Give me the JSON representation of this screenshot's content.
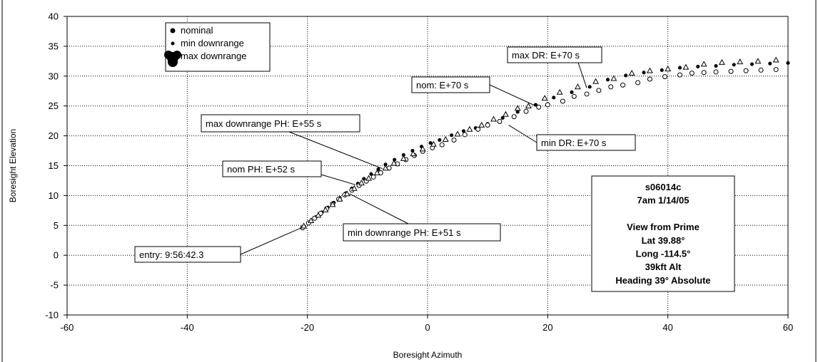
{
  "chart_data": {
    "type": "scatter",
    "xlabel": "Boresight Azimuth",
    "ylabel": "Boresight Elevation",
    "xlim": [
      -60,
      60
    ],
    "ylim": [
      -10,
      40
    ],
    "x_ticks": [
      -60,
      -40,
      -20,
      0,
      20,
      40,
      60
    ],
    "y_ticks": [
      -10,
      -5,
      0,
      5,
      10,
      15,
      20,
      25,
      30,
      35,
      40
    ],
    "grid": "dotted",
    "legend_position": "top-left",
    "series": [
      {
        "name": "nominal",
        "marker": "filled-circle",
        "points": [
          [
            -20.5,
            4.8
          ],
          [
            -19.6,
            5.6
          ],
          [
            -18.6,
            6.4
          ],
          [
            -17.6,
            7.2
          ],
          [
            -16.6,
            8.0
          ],
          [
            -15.6,
            8.8
          ],
          [
            -14.6,
            9.6
          ],
          [
            -13.6,
            10.4
          ],
          [
            -12.6,
            11.2
          ],
          [
            -11.6,
            12.0
          ],
          [
            -10.6,
            12.8
          ],
          [
            -9.4,
            13.6
          ],
          [
            -8.2,
            14.4
          ],
          [
            -7.0,
            15.2
          ],
          [
            -5.5,
            16.0
          ],
          [
            -4.0,
            16.8
          ],
          [
            -2.5,
            17.5
          ],
          [
            -1.0,
            18.2
          ],
          [
            0.5,
            18.8
          ],
          [
            2.0,
            19.3
          ],
          [
            4.0,
            20.1
          ],
          [
            6.0,
            20.8
          ],
          [
            8.0,
            21.3
          ],
          [
            10.0,
            22.0
          ],
          [
            12.5,
            23.0
          ],
          [
            15.0,
            24.0
          ],
          [
            18.0,
            25.2
          ],
          [
            21.0,
            26.4
          ],
          [
            24.0,
            27.3
          ],
          [
            27.0,
            28.2
          ],
          [
            30.0,
            29.4
          ],
          [
            33.0,
            30.1
          ],
          [
            36.0,
            30.6
          ],
          [
            39.0,
            31.0
          ],
          [
            42.0,
            31.4
          ],
          [
            45.0,
            31.6
          ],
          [
            48.0,
            31.7
          ],
          [
            51.0,
            31.9
          ],
          [
            54.0,
            32.0
          ],
          [
            57.0,
            32.1
          ],
          [
            60.0,
            32.2
          ]
        ]
      },
      {
        "name": "min downrange",
        "marker": "open-circle",
        "points": [
          [
            -20.8,
            4.6
          ],
          [
            -19.8,
            5.4
          ],
          [
            -18.8,
            6.2
          ],
          [
            -17.8,
            7.0
          ],
          [
            -16.8,
            7.8
          ],
          [
            -15.8,
            8.6
          ],
          [
            -14.8,
            9.4
          ],
          [
            -13.8,
            10.1
          ],
          [
            -12.6,
            10.9
          ],
          [
            -11.4,
            11.7
          ],
          [
            -10.2,
            12.4
          ],
          [
            -9.0,
            13.1
          ],
          [
            -7.8,
            13.8
          ],
          [
            -6.4,
            14.6
          ],
          [
            -5.0,
            15.3
          ],
          [
            -3.6,
            16.0
          ],
          [
            -2.2,
            16.7
          ],
          [
            -0.8,
            17.4
          ],
          [
            0.8,
            18.0
          ],
          [
            2.4,
            18.5
          ],
          [
            4.4,
            19.3
          ],
          [
            6.2,
            20.2
          ],
          [
            8.4,
            21.1
          ],
          [
            10.0,
            21.8
          ],
          [
            12.0,
            22.4
          ],
          [
            14.4,
            23.2
          ],
          [
            16.4,
            24.1
          ],
          [
            18.5,
            24.8
          ],
          [
            20.0,
            25.2
          ],
          [
            22.5,
            25.8
          ],
          [
            24.4,
            26.6
          ],
          [
            26.5,
            27.0
          ],
          [
            28.5,
            27.6
          ],
          [
            30.5,
            28.2
          ],
          [
            32.5,
            28.5
          ],
          [
            35.0,
            28.9
          ],
          [
            37.0,
            29.5
          ],
          [
            39.5,
            29.9
          ],
          [
            42.0,
            30.2
          ],
          [
            44.0,
            30.5
          ],
          [
            46.0,
            30.6
          ],
          [
            48.0,
            30.7
          ],
          [
            50.5,
            30.8
          ],
          [
            53.0,
            30.9
          ],
          [
            55.5,
            31.0
          ],
          [
            58.0,
            31.1
          ]
        ]
      },
      {
        "name": "max downrange",
        "marker": "open-triangle",
        "points": [
          [
            -20.6,
            4.9
          ],
          [
            -19.4,
            5.8
          ],
          [
            -18.2,
            6.7
          ],
          [
            -17.0,
            7.6
          ],
          [
            -15.8,
            8.5
          ],
          [
            -14.6,
            9.4
          ],
          [
            -13.4,
            10.3
          ],
          [
            -12.2,
            11.2
          ],
          [
            -11.0,
            12.1
          ],
          [
            -9.8,
            12.9
          ],
          [
            -8.4,
            13.8
          ],
          [
            -7.0,
            14.6
          ],
          [
            -5.6,
            15.4
          ],
          [
            -4.0,
            16.2
          ],
          [
            -2.4,
            17.0
          ],
          [
            -0.8,
            17.8
          ],
          [
            1.0,
            18.6
          ],
          [
            3.0,
            19.4
          ],
          [
            5.0,
            20.3
          ],
          [
            7.0,
            21.1
          ],
          [
            9.0,
            21.8
          ],
          [
            11.0,
            22.8
          ],
          [
            13.0,
            23.6
          ],
          [
            15.0,
            24.6
          ],
          [
            16.8,
            25.0
          ],
          [
            19.5,
            26.3
          ],
          [
            22.0,
            27.3
          ],
          [
            25.0,
            28.2
          ],
          [
            28.0,
            29.1
          ],
          [
            31.0,
            29.6
          ],
          [
            34.0,
            30.5
          ],
          [
            37.0,
            30.9
          ],
          [
            40.0,
            31.2
          ],
          [
            43.0,
            31.5
          ],
          [
            46.0,
            32.0
          ],
          [
            49.0,
            32.3
          ],
          [
            52.0,
            32.4
          ],
          [
            55.0,
            32.5
          ],
          [
            58.0,
            32.7
          ]
        ]
      }
    ],
    "legend": [
      "nominal",
      "min downrange",
      "max downrange"
    ],
    "annotations": [
      {
        "id": "entry",
        "text": "entry: 9:56:42.3",
        "target": [
          -21,
          4.6
        ]
      },
      {
        "id": "nom-ph",
        "text": "nom PH: E+52 s",
        "target": [
          -12,
          11.8
        ]
      },
      {
        "id": "max-ph",
        "text": "max downrange PH: E+55 s",
        "target": [
          -7.5,
          14.5
        ]
      },
      {
        "id": "min-ph",
        "text": "min downrange PH: E+51 s",
        "target": [
          -13,
          10.3
        ]
      },
      {
        "id": "nom-70",
        "text": "nom: E+70 s",
        "target": [
          17.8,
          25.1
        ]
      },
      {
        "id": "maxdr-70",
        "text": "max DR: E+70 s",
        "target": [
          26.5,
          28
        ]
      },
      {
        "id": "mindr-70",
        "text": "min DR: E+70 s",
        "target": [
          13.5,
          21.8
        ]
      }
    ],
    "info_box": [
      "s06014c",
      "7am 1/14/05",
      "",
      "View from Prime",
      "Lat 39.88°",
      "Long -114.5°",
      "39kft Alt",
      "Heading 39° Absolute"
    ]
  }
}
